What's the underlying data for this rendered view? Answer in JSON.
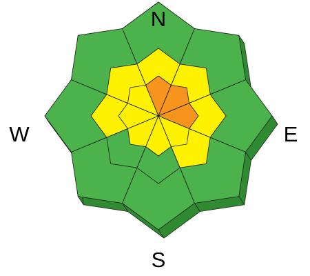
{
  "compass": {
    "north": "N",
    "east": "E",
    "south": "S",
    "west": "W"
  },
  "directions": [
    "N",
    "NE",
    "E",
    "SE",
    "S",
    "SW",
    "W",
    "NW"
  ],
  "rings": [
    "upper",
    "middle",
    "lower"
  ],
  "ratings": {
    "upper": [
      "orange",
      "orange",
      "orange",
      "yellow",
      "yellow",
      "yellow",
      "yellow",
      "yellow"
    ],
    "middle": [
      "yellow",
      "yellow",
      "yellow",
      "yellow",
      "green",
      "green",
      "yellow",
      "yellow"
    ],
    "lower": [
      "green",
      "green",
      "green",
      "green",
      "green",
      "green",
      "green",
      "green"
    ]
  },
  "colors": {
    "green": {
      "top": "#4cb24c",
      "side": "#2f8a32"
    },
    "yellow": {
      "top": "#fff200",
      "side": "#d4c400"
    },
    "orange": {
      "top": "#f7941d",
      "side": "#cc6d10"
    }
  }
}
